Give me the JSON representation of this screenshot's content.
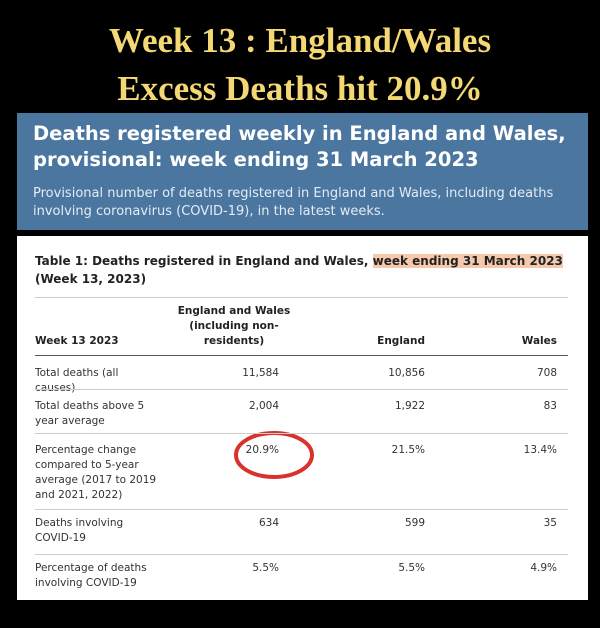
{
  "headline": [
    "Week 13 : England/Wales",
    "Excess Deaths hit 20.9%"
  ],
  "box": {
    "title": "Deaths registered weekly in England and Wales, provisional: week ending 31 March 2023",
    "subtitle": "Provisional number of deaths registered in England and Wales, including deaths involving coronavirus (COVID-19), in the latest weeks."
  },
  "table": {
    "caption": [
      "Table 1: Deaths registered in England and Wales, ",
      "week ending 31 March 2023",
      " (Week 13, 2023)"
    ],
    "header": [
      "Week 13 2023",
      "England and Wales (including non-residents)",
      "England",
      "Wales"
    ],
    "rows": [
      [
        "Total deaths (all causes)",
        "11,584",
        "10,856",
        "708"
      ],
      [
        "Total deaths above 5 year average",
        "2,004",
        "1,922",
        "83"
      ],
      [
        "Percentage change compared to 5-year average (2017 to 2019 and 2021, 2022)",
        "20.9%",
        "21.5%",
        "13.4%"
      ],
      [
        "Deaths involving COVID-19",
        "634",
        "599",
        "35"
      ],
      [
        "Percentage of deaths involving COVID-19",
        "5.5%",
        "5.5%",
        "4.9%"
      ]
    ]
  }
}
